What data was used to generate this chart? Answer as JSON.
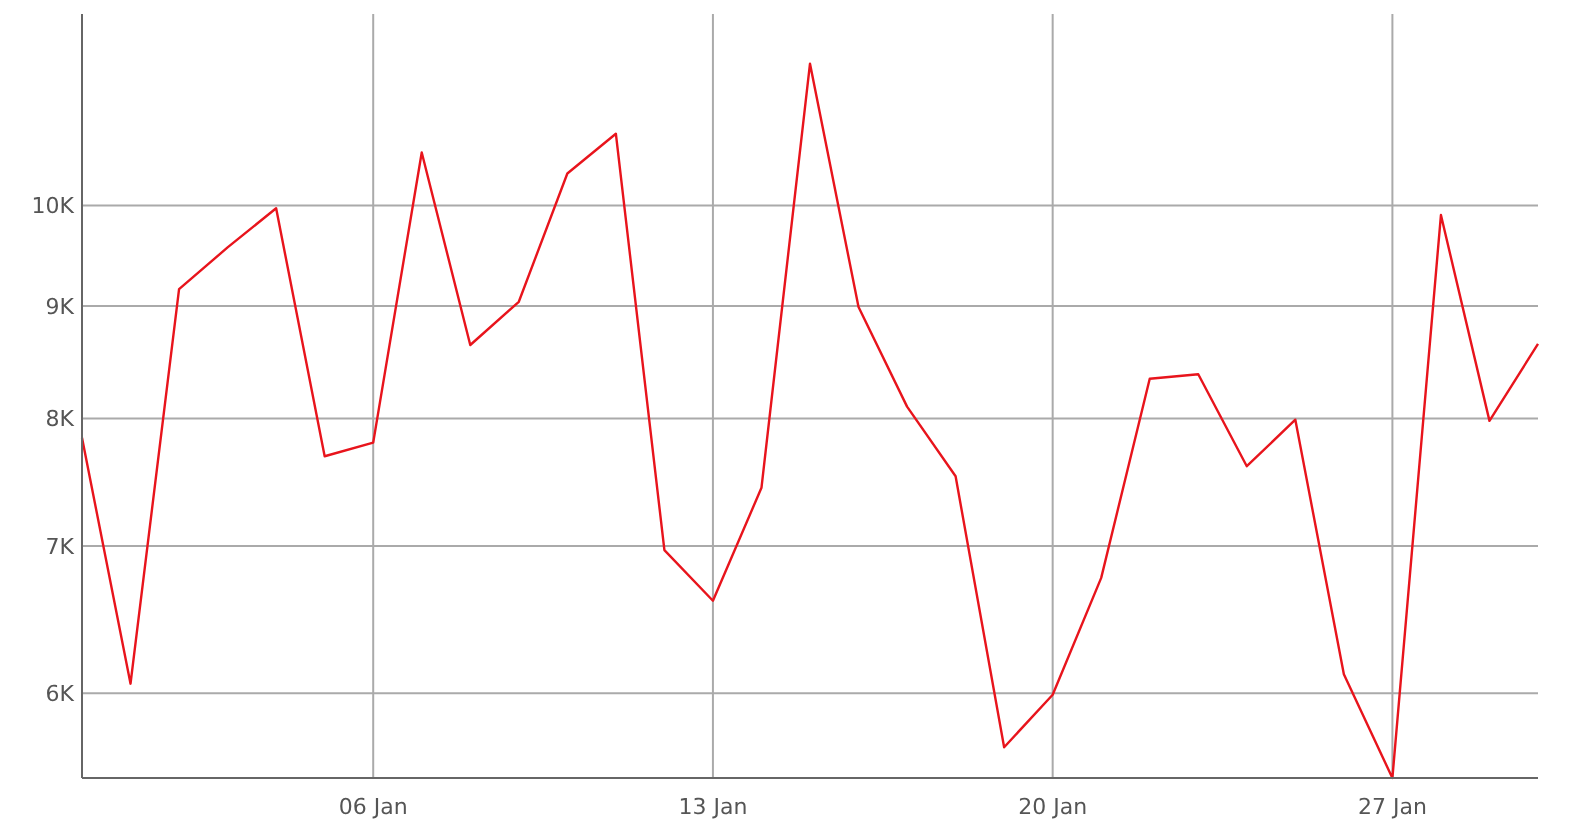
{
  "chart_data": {
    "type": "line",
    "categories": [
      null,
      null,
      null,
      null,
      null,
      null,
      "06 Jan",
      null,
      null,
      null,
      null,
      null,
      null,
      "13 Jan",
      null,
      null,
      null,
      null,
      null,
      null,
      "20 Jan",
      null,
      null,
      null,
      null,
      null,
      null,
      "27 Jan",
      null,
      null,
      null
    ],
    "series": [
      {
        "color": "#e8141c",
        "values": [
          7840,
          6060,
          9160,
          9570,
          9970,
          7690,
          7800,
          10570,
          8640,
          9040,
          10340,
          10780,
          6970,
          6610,
          7440,
          11600,
          8990,
          8100,
          7530,
          5670,
          5990,
          6770,
          8340,
          8380,
          7610,
          7990,
          6120,
          5490,
          9900,
          7980,
          8650
        ]
      }
    ],
    "ylim": [
      5490,
      12220
    ],
    "yticks": [
      {
        "value": 6000,
        "label": "6K"
      },
      {
        "value": 7000,
        "label": "7K"
      },
      {
        "value": 8000,
        "label": "8K"
      },
      {
        "value": 9000,
        "label": "9K"
      },
      {
        "value": 10000,
        "label": "10K"
      }
    ],
    "log": true,
    "grid": true,
    "marker": "none",
    "line_style": "solid"
  }
}
